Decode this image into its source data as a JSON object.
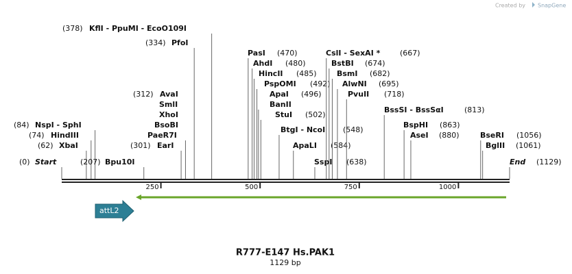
{
  "watermark": "Created by",
  "brand": "SnapGene",
  "title": "R777-E147 Hs.PAK1",
  "length": {
    "value": 1129,
    "label": "1129 bp"
  },
  "features": [
    {
      "label": "attL2"
    }
  ],
  "ruler": {
    "ticks": [
      250,
      500,
      750,
      1000
    ]
  },
  "sites": [
    {
      "names": [
        "Start"
      ],
      "site": {
        "value": 0,
        "label": "(0)"
      }
    },
    {
      "names": [
        "XbaI"
      ],
      "site": {
        "value": 62,
        "label": "(62)"
      }
    },
    {
      "names": [
        "HindIII"
      ],
      "site": {
        "value": 74,
        "label": "(74)"
      }
    },
    {
      "names": [
        "NspI - SphI"
      ],
      "site": {
        "value": 84,
        "label": "(84)"
      }
    },
    {
      "names": [
        "Bpu10I"
      ],
      "site": {
        "value": 207,
        "label": "(207)"
      }
    },
    {
      "names": [
        "EarI"
      ],
      "site": {
        "value": 301,
        "label": "(301)"
      }
    },
    {
      "names": [
        "AvaI",
        "SmlI",
        "XhoI",
        "BsoBI",
        "PaeR7I"
      ],
      "site": {
        "value": 312,
        "label": "(312)"
      }
    },
    {
      "names": [
        "PfoI"
      ],
      "site": {
        "value": 334,
        "label": "(334)"
      }
    },
    {
      "names": [
        "KflI - PpuMI - EcoO109I"
      ],
      "site": {
        "value": 378,
        "label": "(378)"
      }
    },
    {
      "names": [
        "PasI"
      ],
      "site": {
        "value": 470,
        "label": "(470)"
      }
    },
    {
      "names": [
        "AhdI"
      ],
      "site": {
        "value": 480,
        "label": "(480)"
      }
    },
    {
      "names": [
        "HincII"
      ],
      "site": {
        "value": 485,
        "label": "(485)"
      }
    },
    {
      "names": [
        "PspOMI"
      ],
      "site": {
        "value": 492,
        "label": "(492)"
      }
    },
    {
      "names": [
        "ApaI",
        "BanII"
      ],
      "site": {
        "value": 496,
        "label": "(496)"
      }
    },
    {
      "names": [
        "StuI"
      ],
      "site": {
        "value": 502,
        "label": "(502)"
      }
    },
    {
      "names": [
        "BtgI - NcoI"
      ],
      "site": {
        "value": 548,
        "label": "(548)"
      }
    },
    {
      "names": [
        "ApaLI"
      ],
      "site": {
        "value": 584,
        "label": "(584)"
      }
    },
    {
      "names": [
        "SspI"
      ],
      "site": {
        "value": 638,
        "label": "(638)"
      }
    },
    {
      "names": [
        "CslI - SexAI *"
      ],
      "site": {
        "value": 667,
        "label": "(667)"
      }
    },
    {
      "names": [
        "BstBI"
      ],
      "site": {
        "value": 674,
        "label": "(674)"
      }
    },
    {
      "names": [
        "BsmI"
      ],
      "site": {
        "value": 682,
        "label": "(682)"
      }
    },
    {
      "names": [
        "AlwNI"
      ],
      "site": {
        "value": 695,
        "label": "(695)"
      }
    },
    {
      "names": [
        "PvuII"
      ],
      "site": {
        "value": 718,
        "label": "(718)"
      }
    },
    {
      "names": [
        "BssSI - BssSαI"
      ],
      "site": {
        "value": 813,
        "label": "(813)"
      }
    },
    {
      "names": [
        "BspHI"
      ],
      "site": {
        "value": 863,
        "label": "(863)"
      }
    },
    {
      "names": [
        "AseI"
      ],
      "site": {
        "value": 880,
        "label": "(880)"
      }
    },
    {
      "names": [
        "BseRI"
      ],
      "site": {
        "value": 1056,
        "label": "(1056)"
      }
    },
    {
      "names": [
        "BglII"
      ],
      "site": {
        "value": 1061,
        "label": "(1061)"
      }
    },
    {
      "names": [
        "End"
      ],
      "site": {
        "value": 1129,
        "label": "(1129)"
      }
    }
  ]
}
